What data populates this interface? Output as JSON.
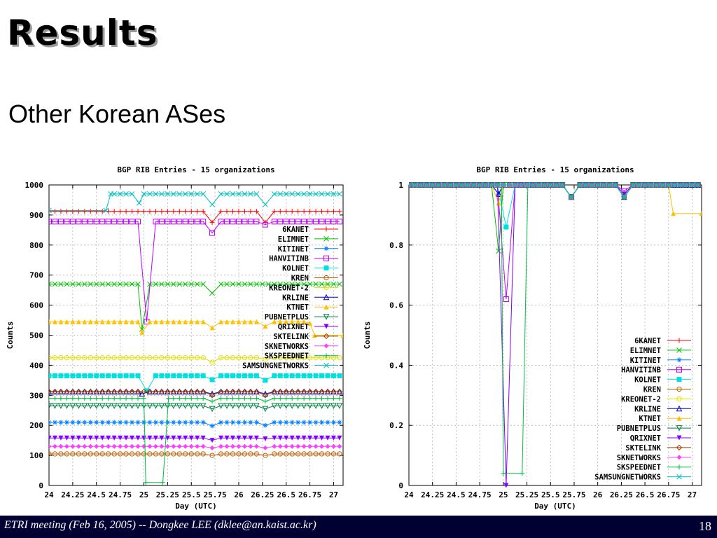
{
  "slide": {
    "title": "Results",
    "subtitle": "Other Korean ASes",
    "footer": "ETRI meeting (Feb 16, 2005) -- Dongkee LEE (dklee@an.kaist.ac.kr)",
    "page_number": "18"
  },
  "chart_data": [
    {
      "type": "line",
      "title": "BGP RIB Entries - 15 organizations",
      "xlabel": "Day (UTC)",
      "ylabel": "Counts",
      "xlim": [
        24,
        27.1
      ],
      "ylim": [
        0,
        1000
      ],
      "xticks": [
        24,
        24.25,
        24.5,
        24.75,
        25,
        25.25,
        25.5,
        25.75,
        26,
        26.25,
        26.5,
        26.75,
        27
      ],
      "xtick_labels": [
        "24",
        "24.25",
        "24.5",
        "24.75",
        "25",
        "25.25",
        "25.5",
        "25.75",
        "26",
        "26.25",
        "26.5",
        "26.75",
        "27"
      ],
      "yticks": [
        0,
        100,
        200,
        300,
        400,
        500,
        600,
        700,
        800,
        900,
        1000
      ],
      "ytick_labels": [
        "0",
        "100",
        "200",
        "300",
        "400",
        "500",
        "600",
        "700",
        "800",
        "900",
        "1000"
      ],
      "grid": true,
      "legend_position": "right",
      "series": [
        {
          "name": "6KANET",
          "color": "#ff0000",
          "marker": "plus",
          "base": 912,
          "dips": [
            [
              25.72,
              875
            ],
            [
              26.28,
              875
            ]
          ]
        },
        {
          "name": "ELIMNET",
          "color": "#00c000",
          "marker": "x",
          "base": 670,
          "dips": [
            [
              24.98,
              520
            ],
            [
              25.72,
              640
            ]
          ]
        },
        {
          "name": "KITINET",
          "color": "#0080ff",
          "marker": "star",
          "base": 210,
          "dips": [
            [
              25.72,
              198
            ],
            [
              26.28,
              200
            ]
          ]
        },
        {
          "name": "HANVITINB",
          "color": "#c000ff",
          "marker": "square",
          "base": 878,
          "dips": [
            [
              25.03,
              545
            ],
            [
              25.72,
              840
            ],
            [
              26.28,
              868
            ]
          ]
        },
        {
          "name": "KOLNET",
          "color": "#00e0e0",
          "marker": "fsquare",
          "base": 365,
          "dips": [
            [
              25.03,
              315
            ],
            [
              25.72,
              352
            ],
            [
              26.28,
              350
            ]
          ]
        },
        {
          "name": "KREN",
          "color": "#c06000",
          "marker": "circle",
          "base": 105,
          "dips": [
            [
              25.72,
              100
            ],
            [
              26.28,
              100
            ]
          ]
        },
        {
          "name": "KREONET-2",
          "color": "#e0e000",
          "marker": "ocircle",
          "base": 425,
          "dips": [
            [
              25.72,
              410
            ],
            [
              26.28,
              420
            ]
          ]
        },
        {
          "name": "KRLINE",
          "color": "#0000c0",
          "marker": "triangle",
          "base": 312,
          "dips": [
            [
              24.98,
              305
            ],
            [
              25.72,
              305
            ],
            [
              26.28,
              305
            ]
          ]
        },
        {
          "name": "KTNET",
          "color": "#ffc000",
          "marker": "ftriangle",
          "base": 545,
          "dips": [
            [
              24.98,
              510
            ],
            [
              25.72,
              525
            ],
            [
              26.28,
              530
            ]
          ],
          "tail": [
            [
              26.75,
              540
            ],
            [
              26.8,
              500
            ],
            [
              27.1,
              500
            ]
          ]
        },
        {
          "name": "PUBNETPLUS",
          "color": "#008040",
          "marker": "itriangle",
          "base": 265,
          "dips": [
            [
              25.72,
              255
            ],
            [
              26.28,
              255
            ]
          ]
        },
        {
          "name": "QRIXNET",
          "color": "#8000ff",
          "marker": "fitriangle",
          "base": 158,
          "dips": [
            [
              25.72,
              150
            ],
            [
              26.28,
              155
            ]
          ]
        },
        {
          "name": "SKTELINK",
          "color": "#a04000",
          "marker": "diamond",
          "base": 312,
          "dips": [
            [
              25.72,
              300
            ],
            [
              26.28,
              300
            ]
          ]
        },
        {
          "name": "SKNETWORKS",
          "color": "#ff40ff",
          "marker": "fdiamond",
          "base": 130,
          "dips": [
            [
              25.72,
              125
            ],
            [
              26.28,
              125
            ]
          ]
        },
        {
          "name": "SKSPEEDNET",
          "color": "#00c040",
          "marker": "plus",
          "base": 290,
          "crash": [
            [
              25.0,
              290
            ],
            [
              25.02,
              10
            ],
            [
              25.2,
              10
            ],
            [
              25.26,
              290
            ]
          ],
          "dips": [
            [
              25.72,
              280
            ],
            [
              26.28,
              280
            ]
          ]
        },
        {
          "name": "SAMSUNGNETWORKS",
          "color": "#00c0c0",
          "marker": "x",
          "base": 970,
          "head": [
            [
              24.0,
              915
            ],
            [
              24.6,
              915
            ],
            [
              24.65,
              970
            ]
          ],
          "dips": [
            [
              24.95,
              940
            ],
            [
              25.72,
              935
            ],
            [
              26.28,
              935
            ]
          ]
        }
      ]
    },
    {
      "type": "line",
      "title": "BGP RIB Entries - 15 organizations",
      "xlabel": "Day (UTC)",
      "ylabel": "Counts",
      "xlim": [
        24,
        27.1
      ],
      "ylim": [
        0,
        1
      ],
      "xticks": [
        24,
        24.25,
        24.5,
        24.75,
        25,
        25.25,
        25.5,
        25.75,
        26,
        26.25,
        26.5,
        26.75,
        27
      ],
      "xtick_labels": [
        "24",
        "24.25",
        "24.5",
        "24.75",
        "25",
        "25.25",
        "25.5",
        "25.75",
        "26",
        "26.25",
        "26.5",
        "26.75",
        "27"
      ],
      "yticks": [
        0,
        0.2,
        0.4,
        0.6,
        0.8,
        1
      ],
      "ytick_labels": [
        "0",
        "0.2",
        "0.4",
        "0.6",
        "0.8",
        "1"
      ],
      "grid": true,
      "legend_position": "bottom-right",
      "series": [
        {
          "name": "6KANET",
          "color": "#ff0000",
          "marker": "plus",
          "base": 1,
          "dips": [
            [
              25.72,
              0.96
            ],
            [
              26.28,
              0.96
            ]
          ]
        },
        {
          "name": "ELIMNET",
          "color": "#00c000",
          "marker": "x",
          "base": 1,
          "dips": [
            [
              24.95,
              0.78
            ],
            [
              25.72,
              0.96
            ],
            [
              26.28,
              0.96
            ]
          ]
        },
        {
          "name": "KITINET",
          "color": "#0080ff",
          "marker": "star",
          "base": 1,
          "dips": [
            [
              24.95,
              0.97
            ],
            [
              25.72,
              0.96
            ],
            [
              26.28,
              0.96
            ]
          ]
        },
        {
          "name": "HANVITINB",
          "color": "#c000ff",
          "marker": "square",
          "base": 1,
          "dips": [
            [
              25.03,
              0.62
            ],
            [
              25.72,
              0.96
            ],
            [
              26.28,
              0.98
            ]
          ]
        },
        {
          "name": "KOLNET",
          "color": "#00e0e0",
          "marker": "fsquare",
          "base": 1,
          "dips": [
            [
              25.03,
              0.86
            ],
            [
              25.72,
              0.96
            ],
            [
              26.28,
              0.96
            ]
          ]
        },
        {
          "name": "KREN",
          "color": "#c06000",
          "marker": "circle",
          "base": 1,
          "dips": [
            [
              25.72,
              0.96
            ],
            [
              26.28,
              0.96
            ]
          ]
        },
        {
          "name": "KREONET-2",
          "color": "#e0e000",
          "marker": "ocircle",
          "base": 1,
          "dips": [
            [
              25.72,
              0.96
            ],
            [
              26.28,
              0.97
            ]
          ]
        },
        {
          "name": "KRLINE",
          "color": "#0000c0",
          "marker": "triangle",
          "base": 1,
          "dips": [
            [
              24.95,
              0.97
            ],
            [
              25.72,
              0.96
            ],
            [
              26.28,
              0.96
            ]
          ]
        },
        {
          "name": "KTNET",
          "color": "#ffc000",
          "marker": "ftriangle",
          "base": 1,
          "dips": [
            [
              24.95,
              0.94
            ],
            [
              25.72,
              0.96
            ],
            [
              26.28,
              0.97
            ]
          ],
          "tail": [
            [
              26.75,
              1
            ],
            [
              26.8,
              0.905
            ],
            [
              27.1,
              0.905
            ]
          ]
        },
        {
          "name": "PUBNETPLUS",
          "color": "#008040",
          "marker": "itriangle",
          "base": 1,
          "dips": [
            [
              25.72,
              0.96
            ],
            [
              26.28,
              0.96
            ]
          ]
        },
        {
          "name": "QRIXNET",
          "color": "#8000ff",
          "marker": "fitriangle",
          "base": 1,
          "dips": [
            [
              25.03,
              0.0
            ],
            [
              25.72,
              0.96
            ],
            [
              26.28,
              0.97
            ]
          ]
        },
        {
          "name": "SKTELINK",
          "color": "#a04000",
          "marker": "diamond",
          "base": 1,
          "dips": [
            [
              25.72,
              0.96
            ],
            [
              26.28,
              0.96
            ]
          ]
        },
        {
          "name": "SKNETWORKS",
          "color": "#ff40ff",
          "marker": "fdiamond",
          "base": 1,
          "dips": [
            [
              25.72,
              0.96
            ],
            [
              26.28,
              0.96
            ]
          ]
        },
        {
          "name": "SKSPEEDNET",
          "color": "#00c040",
          "marker": "plus",
          "base": 1,
          "crash": [
            [
              24.98,
              1
            ],
            [
              25.0,
              0.04
            ],
            [
              25.2,
              0.04
            ],
            [
              25.26,
              1
            ]
          ],
          "dips": [
            [
              25.72,
              0.96
            ],
            [
              26.28,
              0.96
            ]
          ]
        },
        {
          "name": "SAMSUNGNETWORKS",
          "color": "#00c0c0",
          "marker": "x",
          "base": 1,
          "dips": [
            [
              25.72,
              0.96
            ],
            [
              26.28,
              0.96
            ]
          ]
        }
      ]
    }
  ]
}
